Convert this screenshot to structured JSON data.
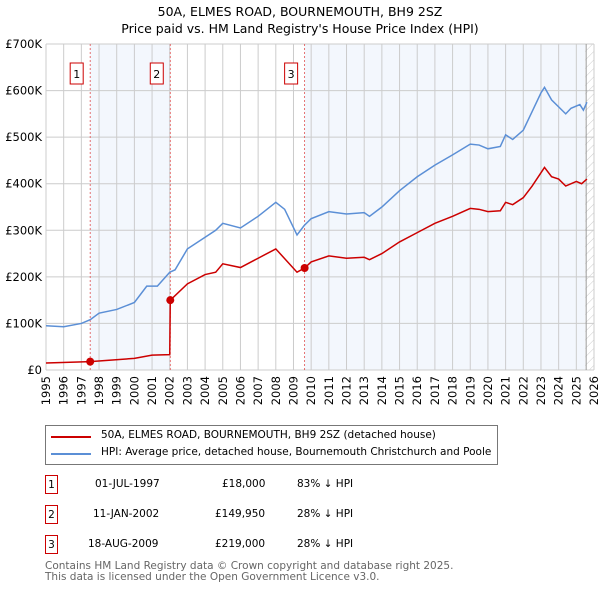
{
  "chart_data": {
    "type": "line",
    "title": "50A, ELMES ROAD, BOURNEMOUTH, BH9 2SZ",
    "subtitle": "Price paid vs. HM Land Registry's House Price Index (HPI)",
    "xlim": [
      1995,
      2026
    ],
    "ylim": [
      0,
      700000
    ],
    "x_ticks": [
      "1995",
      "1996",
      "1997",
      "1998",
      "1999",
      "2000",
      "2001",
      "2002",
      "2003",
      "2004",
      "2005",
      "2006",
      "2007",
      "2008",
      "2009",
      "2010",
      "2011",
      "2012",
      "2013",
      "2014",
      "2015",
      "2016",
      "2017",
      "2018",
      "2019",
      "2020",
      "2021",
      "2022",
      "2023",
      "2024",
      "2025",
      "2026"
    ],
    "y_ticks": [
      {
        "v": 0,
        "label": "£0"
      },
      {
        "v": 100000,
        "label": "£100K"
      },
      {
        "v": 200000,
        "label": "£200K"
      },
      {
        "v": 300000,
        "label": "£300K"
      },
      {
        "v": 400000,
        "label": "£400K"
      },
      {
        "v": 500000,
        "label": "£500K"
      },
      {
        "v": 600000,
        "label": "£600K"
      },
      {
        "v": 700000,
        "label": "£700K"
      }
    ],
    "series": [
      {
        "name": "50A, ELMES ROAD, BOURNEMOUTH, BH9 2SZ (detached house)",
        "color": "#cc0000",
        "points": [
          [
            1995,
            15000
          ],
          [
            1997.5,
            18000
          ],
          [
            2000,
            25000
          ],
          [
            2001,
            32000
          ],
          [
            2002,
            33000
          ],
          [
            2002.03,
            149950
          ],
          [
            2003,
            185000
          ],
          [
            2004,
            205000
          ],
          [
            2004.6,
            210000
          ],
          [
            2005,
            228000
          ],
          [
            2006,
            220000
          ],
          [
            2007,
            240000
          ],
          [
            2008,
            260000
          ],
          [
            2009.2,
            210000
          ],
          [
            2009.63,
            219000
          ],
          [
            2010,
            232000
          ],
          [
            2011,
            245000
          ],
          [
            2012,
            240000
          ],
          [
            2013,
            242000
          ],
          [
            2013.3,
            237000
          ],
          [
            2014,
            250000
          ],
          [
            2015,
            275000
          ],
          [
            2016,
            295000
          ],
          [
            2017,
            315000
          ],
          [
            2018,
            330000
          ],
          [
            2019,
            347000
          ],
          [
            2019.5,
            345000
          ],
          [
            2020,
            340000
          ],
          [
            2020.7,
            342000
          ],
          [
            2021,
            360000
          ],
          [
            2021.4,
            355000
          ],
          [
            2022,
            370000
          ],
          [
            2022.5,
            395000
          ],
          [
            2023.2,
            435000
          ],
          [
            2023.6,
            415000
          ],
          [
            2024,
            410000
          ],
          [
            2024.4,
            395000
          ],
          [
            2025,
            405000
          ],
          [
            2025.3,
            400000
          ],
          [
            2025.6,
            410000
          ]
        ]
      },
      {
        "name": "HPI: Average price, detached house, Bournemouth Christchurch and Poole",
        "color": "#5b8fd6",
        "points": [
          [
            1995,
            95000
          ],
          [
            1996,
            93000
          ],
          [
            1997,
            100000
          ],
          [
            1997.5,
            108000
          ],
          [
            1998,
            122000
          ],
          [
            1999,
            130000
          ],
          [
            2000,
            145000
          ],
          [
            2000.7,
            180000
          ],
          [
            2001.3,
            180000
          ],
          [
            2002,
            210000
          ],
          [
            2002.3,
            215000
          ],
          [
            2003,
            260000
          ],
          [
            2004,
            285000
          ],
          [
            2004.6,
            300000
          ],
          [
            2005,
            315000
          ],
          [
            2006,
            305000
          ],
          [
            2007,
            330000
          ],
          [
            2008,
            360000
          ],
          [
            2008.5,
            345000
          ],
          [
            2009.2,
            290000
          ],
          [
            2009.6,
            310000
          ],
          [
            2010,
            325000
          ],
          [
            2011,
            340000
          ],
          [
            2012,
            335000
          ],
          [
            2013,
            338000
          ],
          [
            2013.3,
            330000
          ],
          [
            2014,
            350000
          ],
          [
            2015,
            385000
          ],
          [
            2016,
            415000
          ],
          [
            2017,
            440000
          ],
          [
            2018,
            462000
          ],
          [
            2019,
            485000
          ],
          [
            2019.5,
            483000
          ],
          [
            2020,
            475000
          ],
          [
            2020.7,
            480000
          ],
          [
            2021,
            505000
          ],
          [
            2021.4,
            495000
          ],
          [
            2022,
            515000
          ],
          [
            2022.5,
            555000
          ],
          [
            2023,
            595000
          ],
          [
            2023.2,
            607000
          ],
          [
            2023.6,
            580000
          ],
          [
            2024,
            565000
          ],
          [
            2024.4,
            550000
          ],
          [
            2024.7,
            562000
          ],
          [
            2025.2,
            570000
          ],
          [
            2025.4,
            558000
          ],
          [
            2025.6,
            575000
          ]
        ]
      }
    ],
    "sales": [
      {
        "n": "1",
        "x": 1997.5,
        "y": 18000
      },
      {
        "n": "2",
        "x": 2002.03,
        "y": 149950
      },
      {
        "n": "3",
        "x": 2009.63,
        "y": 219000
      }
    ],
    "shaded": [
      [
        1997.5,
        2002.03
      ],
      [
        2009.63,
        2025.5
      ]
    ],
    "hatched_from": 2025.5
  },
  "header": {
    "title": "50A, ELMES ROAD, BOURNEMOUTH, BH9 2SZ",
    "subtitle": "Price paid vs. HM Land Registry's House Price Index (HPI)"
  },
  "legend": {
    "red": "50A, ELMES ROAD, BOURNEMOUTH, BH9 2SZ (detached house)",
    "blue": "HPI: Average price, detached house, Bournemouth Christchurch and Poole"
  },
  "transactions": [
    {
      "n": "1",
      "date": "01-JUL-1997",
      "price": "£18,000",
      "hpi": "83% ↓ HPI"
    },
    {
      "n": "2",
      "date": "11-JAN-2002",
      "price": "£149,950",
      "hpi": "28% ↓ HPI"
    },
    {
      "n": "3",
      "date": "18-AUG-2009",
      "price": "£219,000",
      "hpi": "28% ↓ HPI"
    }
  ],
  "footer": {
    "line1": "Contains HM Land Registry data © Crown copyright and database right 2025.",
    "line2": "This data is licensed under the Open Government Licence v3.0."
  }
}
